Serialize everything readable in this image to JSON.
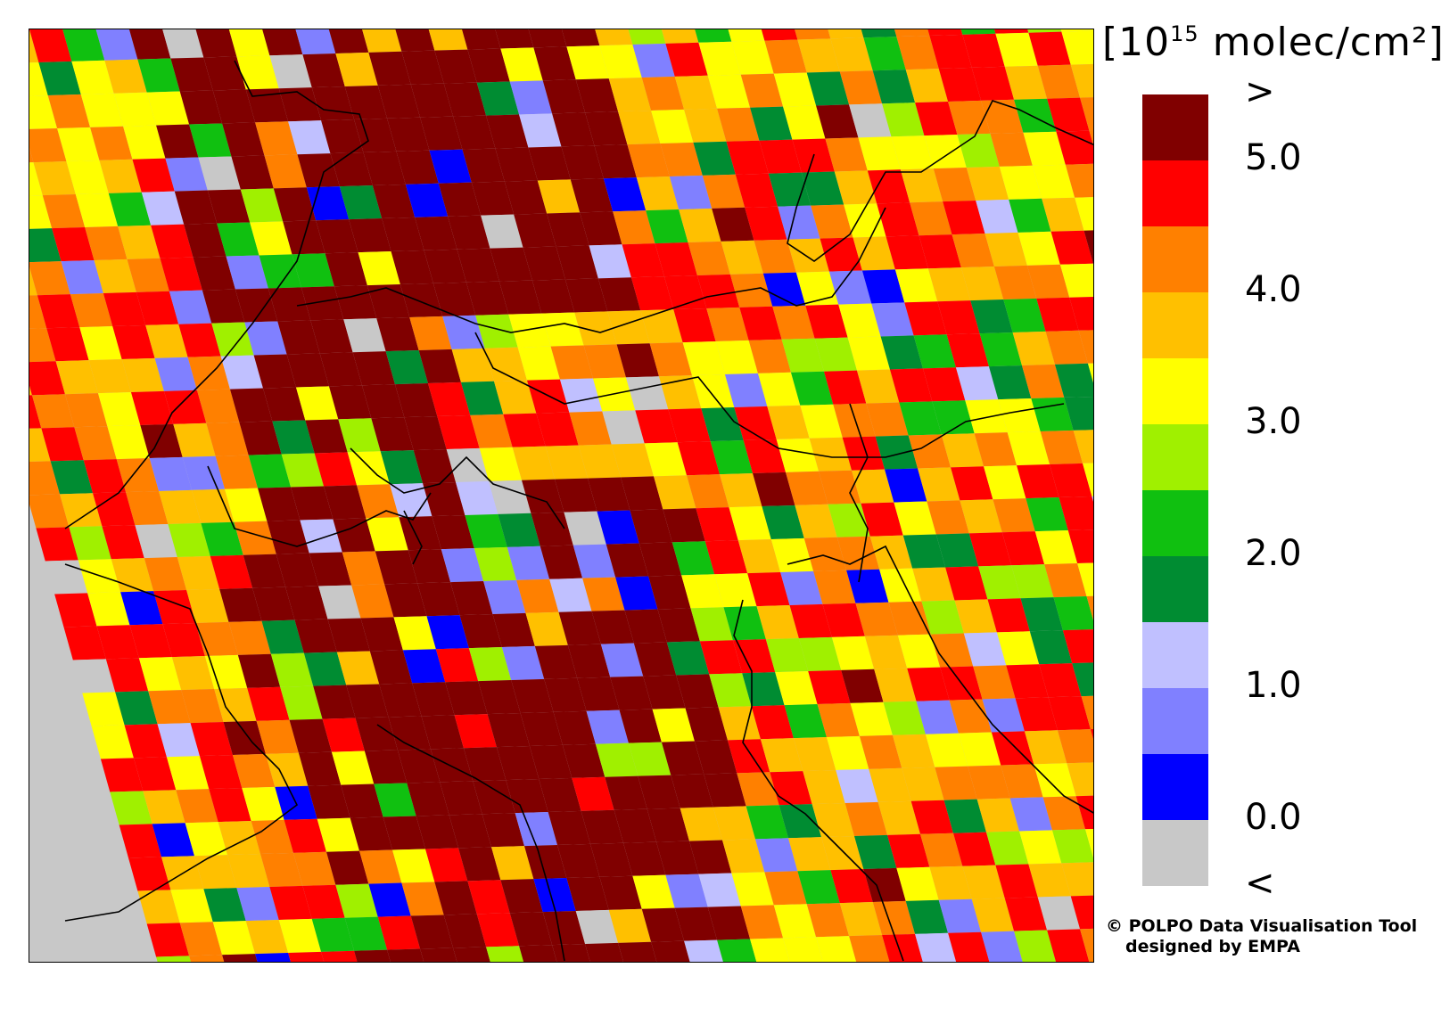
{
  "legend": {
    "unit_prefix": "[10",
    "unit_exp": "15",
    "unit_suffix": " molec/cm²]",
    "bins": [
      {
        "color": "#800000"
      },
      {
        "color": "#ff0000"
      },
      {
        "color": "#ff8000"
      },
      {
        "color": "#ffc000"
      },
      {
        "color": "#ffff00"
      },
      {
        "color": "#a0f000"
      },
      {
        "color": "#10c010"
      },
      {
        "color": "#008c32"
      },
      {
        "color": "#c0c0ff"
      },
      {
        "color": "#8080ff"
      },
      {
        "color": "#0000ff"
      },
      {
        "color": "#c8c8c8"
      }
    ],
    "labels": [
      {
        "text": ">",
        "boundary": 0
      },
      {
        "text": "5.0",
        "boundary": 1
      },
      {
        "text": "4.0",
        "boundary": 3
      },
      {
        "text": "3.0",
        "boundary": 5
      },
      {
        "text": "2.0",
        "boundary": 7
      },
      {
        "text": "1.0",
        "boundary": 9
      },
      {
        "text": "0.0",
        "boundary": 11
      },
      {
        "text": "<",
        "boundary": 12
      }
    ]
  },
  "credit": {
    "line1": "© POLPO Data Visualisation Tool",
    "line2": "designed by EMPA"
  },
  "map": {
    "grid_cols": 38,
    "grid_rows": 30,
    "seed": 15
  }
}
